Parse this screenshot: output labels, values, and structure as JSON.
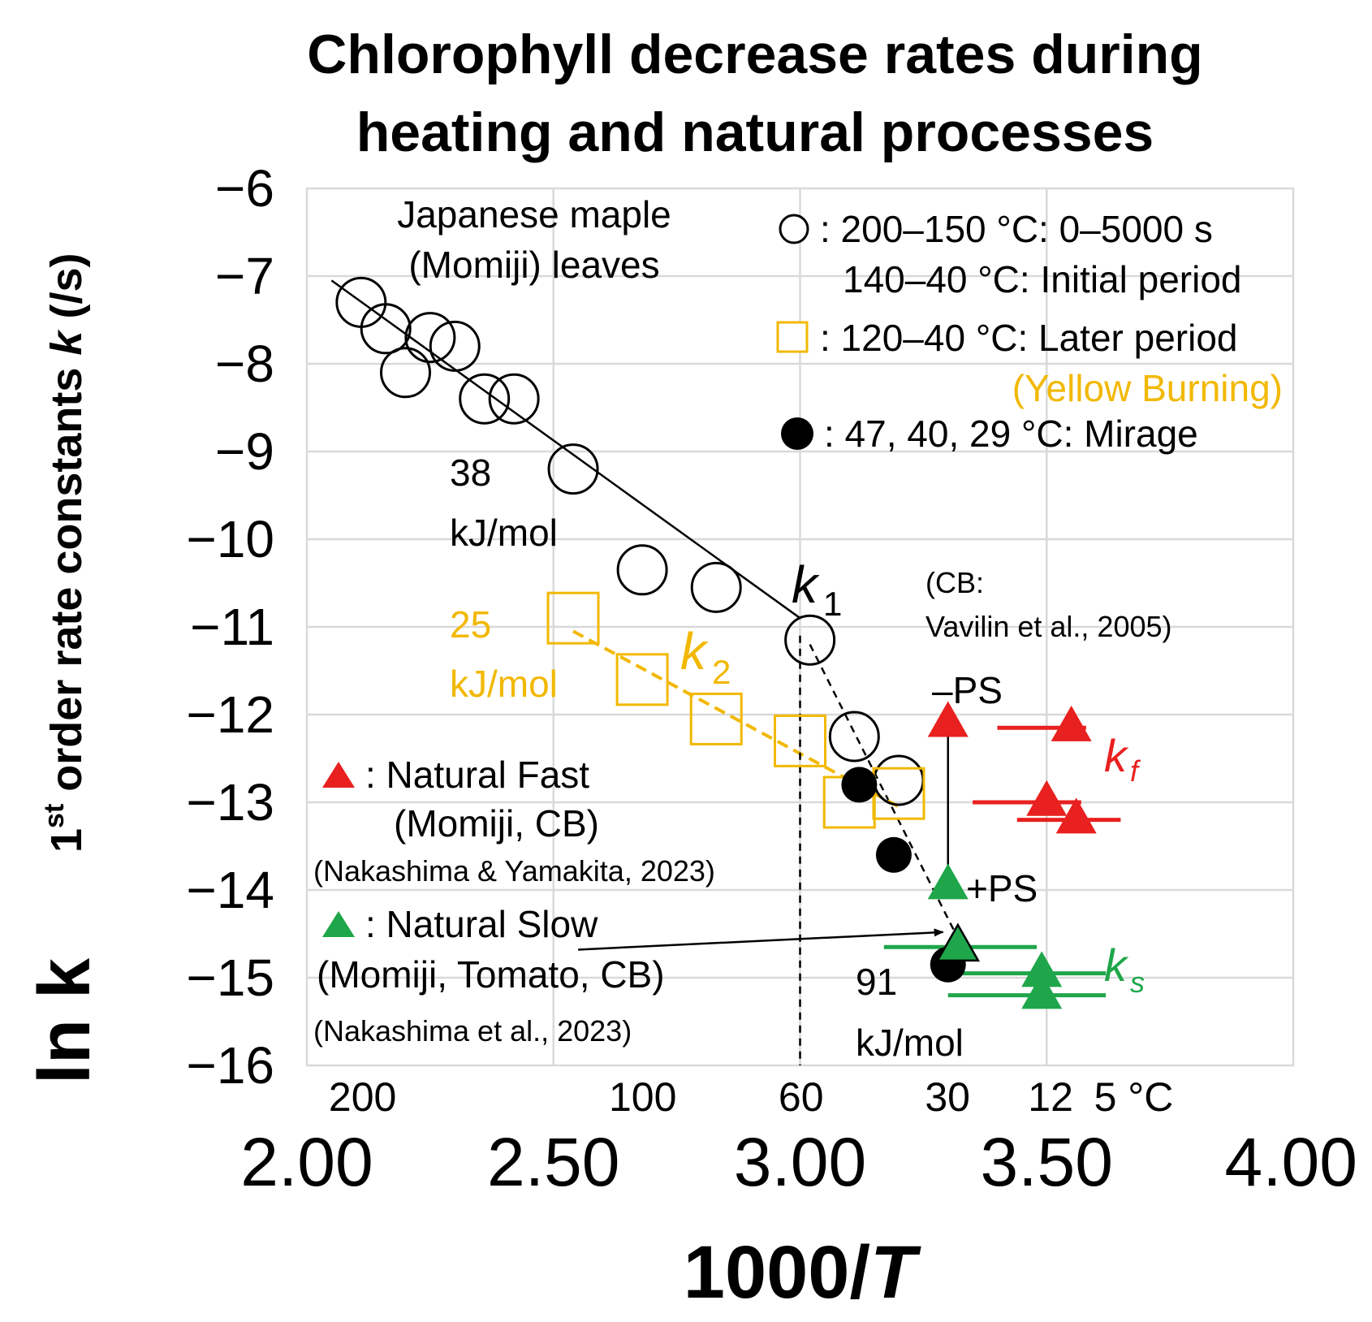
{
  "chart_data": {
    "type": "scatter",
    "title": [
      "Chlorophyll decrease rates during",
      "heating and natural processes"
    ],
    "xlabel": "1000/T",
    "xlabel_prefix": "1000/",
    "xlabel_var": "T",
    "ylabel": "1st order rate constants k (/s)",
    "ylabel_ln": "ln k",
    "ylabel_pre": "1",
    "ylabel_sup": "st",
    "ylabel_mid": " order rate constants ",
    "ylabel_var": "k",
    "ylabel_unit": " (/s)",
    "xlim": [
      2.0,
      4.0
    ],
    "ylim": [
      -16,
      -6
    ],
    "x_ticks": [
      2.0,
      2.5,
      3.0,
      3.5,
      4.0
    ],
    "x_tick_labels": [
      "2.00",
      "2.50",
      "3.00",
      "3.50",
      "4.00"
    ],
    "y_ticks": [
      -6,
      -7,
      -8,
      -9,
      -10,
      -11,
      -12,
      -13,
      -14,
      -15,
      -16
    ],
    "y_tick_labels": [
      "−6",
      "−7",
      "−8",
      "−9",
      "−10",
      "−11",
      "−12",
      "−13",
      "−14",
      "−15",
      "−16"
    ],
    "celsius_ticks": [
      {
        "x": 2.113,
        "label": "200"
      },
      {
        "x": 2.681,
        "label": "100"
      },
      {
        "x": 3.002,
        "label": "60"
      },
      {
        "x": 3.299,
        "label": "30"
      },
      {
        "x": 3.508,
        "label": "12"
      },
      {
        "x": 3.596,
        "label": "5 °C"
      }
    ],
    "grid": true,
    "series": [
      {
        "name": "Open circles: 200–150 °C: 0–5000 s; 140–40 °C: Initial period",
        "marker": "circle-open",
        "color": "#000000",
        "points": [
          [
            2.11,
            -7.3
          ],
          [
            2.16,
            -7.6
          ],
          [
            2.2,
            -8.1
          ],
          [
            2.25,
            -7.7
          ],
          [
            2.3,
            -7.8
          ],
          [
            2.36,
            -8.4
          ],
          [
            2.42,
            -8.4
          ],
          [
            2.54,
            -9.2
          ],
          [
            2.68,
            -10.35
          ],
          [
            2.83,
            -10.55
          ],
          [
            3.02,
            -11.15
          ],
          [
            3.11,
            -12.25
          ],
          [
            3.2,
            -12.75
          ]
        ]
      },
      {
        "name": "Open squares: 120–40 °C: Later period (Yellow Burning)",
        "marker": "square-open",
        "color": "#f2b800",
        "points": [
          [
            2.54,
            -10.9
          ],
          [
            2.68,
            -11.6
          ],
          [
            2.83,
            -12.05
          ],
          [
            3.0,
            -12.3
          ],
          [
            3.1,
            -13.0
          ],
          [
            3.2,
            -12.9
          ]
        ]
      },
      {
        "name": "Filled circles: 47, 40, 29 °C: Mirage",
        "marker": "circle-filled",
        "color": "#000000",
        "points": [
          [
            3.12,
            -12.8
          ],
          [
            3.19,
            -13.6
          ],
          [
            3.3,
            -14.85
          ]
        ]
      },
      {
        "name": "Red triangles: Natural Fast (Momiji, CB)",
        "marker": "triangle-filled",
        "color": "#e8201f",
        "points": [
          [
            3.3,
            -12.1
          ],
          [
            3.55,
            -12.15
          ],
          [
            3.5,
            -13.0
          ],
          [
            3.56,
            -13.2
          ]
        ],
        "xerr_ranges": [
          null,
          [
            3.4,
            3.58
          ],
          [
            3.35,
            3.57
          ],
          [
            3.44,
            3.65
          ]
        ]
      },
      {
        "name": "Green triangles: Natural Slow (Momiji, Tomato, CB)",
        "marker": "triangle-filled",
        "color": "#1fa64a",
        "points": [
          [
            3.3,
            -13.95
          ],
          [
            3.32,
            -14.65
          ],
          [
            3.49,
            -14.95
          ],
          [
            3.49,
            -15.2
          ]
        ],
        "xerr_ranges": [
          null,
          [
            3.17,
            3.48
          ],
          [
            3.3,
            3.62
          ],
          [
            3.3,
            3.62
          ]
        ]
      }
    ],
    "fit_lines": [
      {
        "name": "k1 fit",
        "color": "#000000",
        "style": "solid",
        "points": [
          [
            2.05,
            -7.05
          ],
          [
            3.0,
            -10.9
          ]
        ]
      },
      {
        "name": "k1 low-T",
        "color": "#000000",
        "style": "dashed",
        "points": [
          [
            3.02,
            -11.2
          ],
          [
            3.32,
            -14.55
          ]
        ]
      },
      {
        "name": "k2 fit",
        "color": "#f2b800",
        "style": "dashed",
        "points": [
          [
            2.54,
            -11.05
          ],
          [
            3.2,
            -13.05
          ]
        ]
      },
      {
        "name": "PS link",
        "color": "#000000",
        "style": "solid",
        "points": [
          [
            3.3,
            -12.25
          ],
          [
            3.3,
            -13.8
          ]
        ]
      },
      {
        "name": "60 °C marker",
        "color": "#000000",
        "style": "dashed",
        "points": [
          [
            3.0,
            -11.1
          ],
          [
            3.0,
            -16.0
          ]
        ]
      }
    ],
    "arrow": {
      "from": [
        2.55,
        -14.68
      ],
      "to": [
        3.29,
        -14.48
      ]
    },
    "legend": {
      "open_circle": {
        "line1": ": 200–150 °C: 0–5000 s",
        "line2": "140–40 °C: Initial period"
      },
      "open_square": {
        "line1": ": 120–40 °C: Later period",
        "line2": "(Yellow Burning)"
      },
      "filled_circle": {
        "line1": ": 47, 40, 29 °C: Mirage"
      },
      "red_triangle": {
        "line1": ": Natural  Fast",
        "line2": "(Momiji, CB)",
        "ref": "(Nakashima  & Yamakita,  2023)"
      },
      "green_triangle": {
        "line1": ": Natural  Slow",
        "line2": "(Momiji, Tomato, CB)",
        "ref": "(Nakashima  et al., 2023)"
      }
    },
    "annotations": {
      "maple_line1": "Japanese maple",
      "maple_line2": "(Momiji) leaves",
      "ea_38_value": "38",
      "ea_38_unit": "kJ/mol",
      "ea_25_value": "25",
      "ea_25_unit": "kJ/mol",
      "ea_91_value": "91",
      "ea_91_unit": "kJ/mol",
      "k1_main": "k",
      "k1_sub": "1",
      "k2_main": "k",
      "k2_sub": "2",
      "kf_main": "k",
      "kf_sub": "f",
      "ks_main": "k",
      "ks_sub": "s",
      "cb_line1": "(CB:",
      "cb_line2": "Vavilin  et al., 2005)",
      "minus_ps": "–PS",
      "plus_ps": "+PS"
    }
  }
}
